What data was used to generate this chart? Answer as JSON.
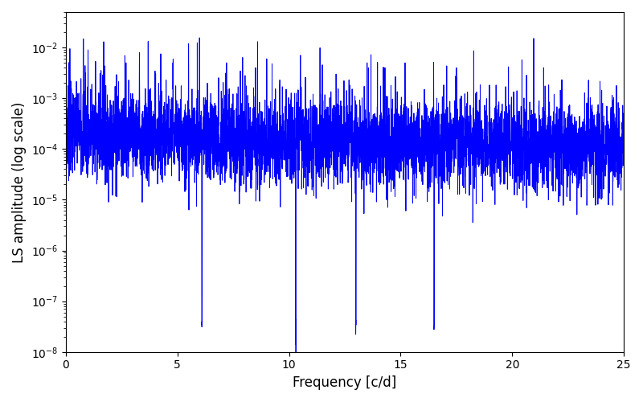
{
  "title": "",
  "xlabel": "Frequency [c/d]",
  "ylabel": "LS amplitude (log scale)",
  "line_color": "#0000ff",
  "line_width": 0.7,
  "xlim": [
    0,
    25
  ],
  "ylim": [
    1e-08,
    0.05
  ],
  "yscale": "log",
  "figsize": [
    8.0,
    5.0
  ],
  "dpi": 100,
  "n_points": 5000,
  "seed": 7,
  "base_amplitude": 0.00012,
  "freq_max": 25.0,
  "background_color": "#ffffff"
}
